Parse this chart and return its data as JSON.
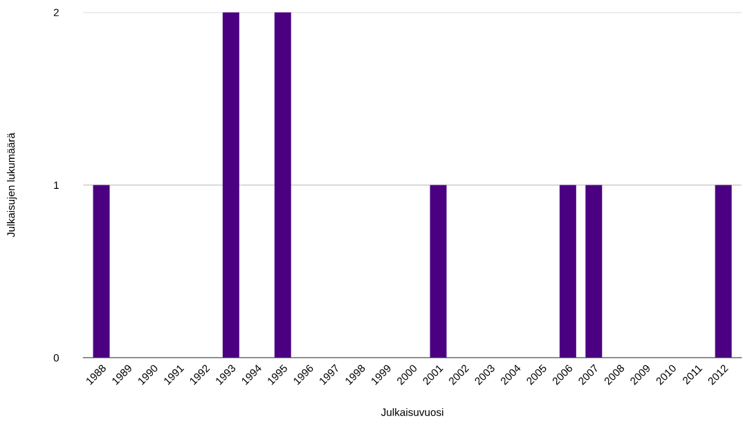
{
  "chart_data": {
    "type": "bar",
    "xlabel": "Julkaisuvuosi",
    "ylabel": "Julkaisujen lukumäärä",
    "categories": [
      "1988",
      "1989",
      "1990",
      "1991",
      "1992",
      "1993",
      "1994",
      "1995",
      "1996",
      "1997",
      "1998",
      "1999",
      "2000",
      "2001",
      "2002",
      "2003",
      "2004",
      "2005",
      "2006",
      "2007",
      "2008",
      "2009",
      "2010",
      "2011",
      "2012"
    ],
    "values": [
      1,
      0,
      0,
      0,
      0,
      2,
      0,
      2,
      0,
      0,
      0,
      0,
      0,
      1,
      0,
      0,
      0,
      0,
      1,
      1,
      0,
      0,
      0,
      0,
      1
    ],
    "color": "#4b0082",
    "ylim": [
      0,
      2
    ],
    "yticks": [
      0,
      1,
      2
    ],
    "grid": "y",
    "legend": false
  }
}
